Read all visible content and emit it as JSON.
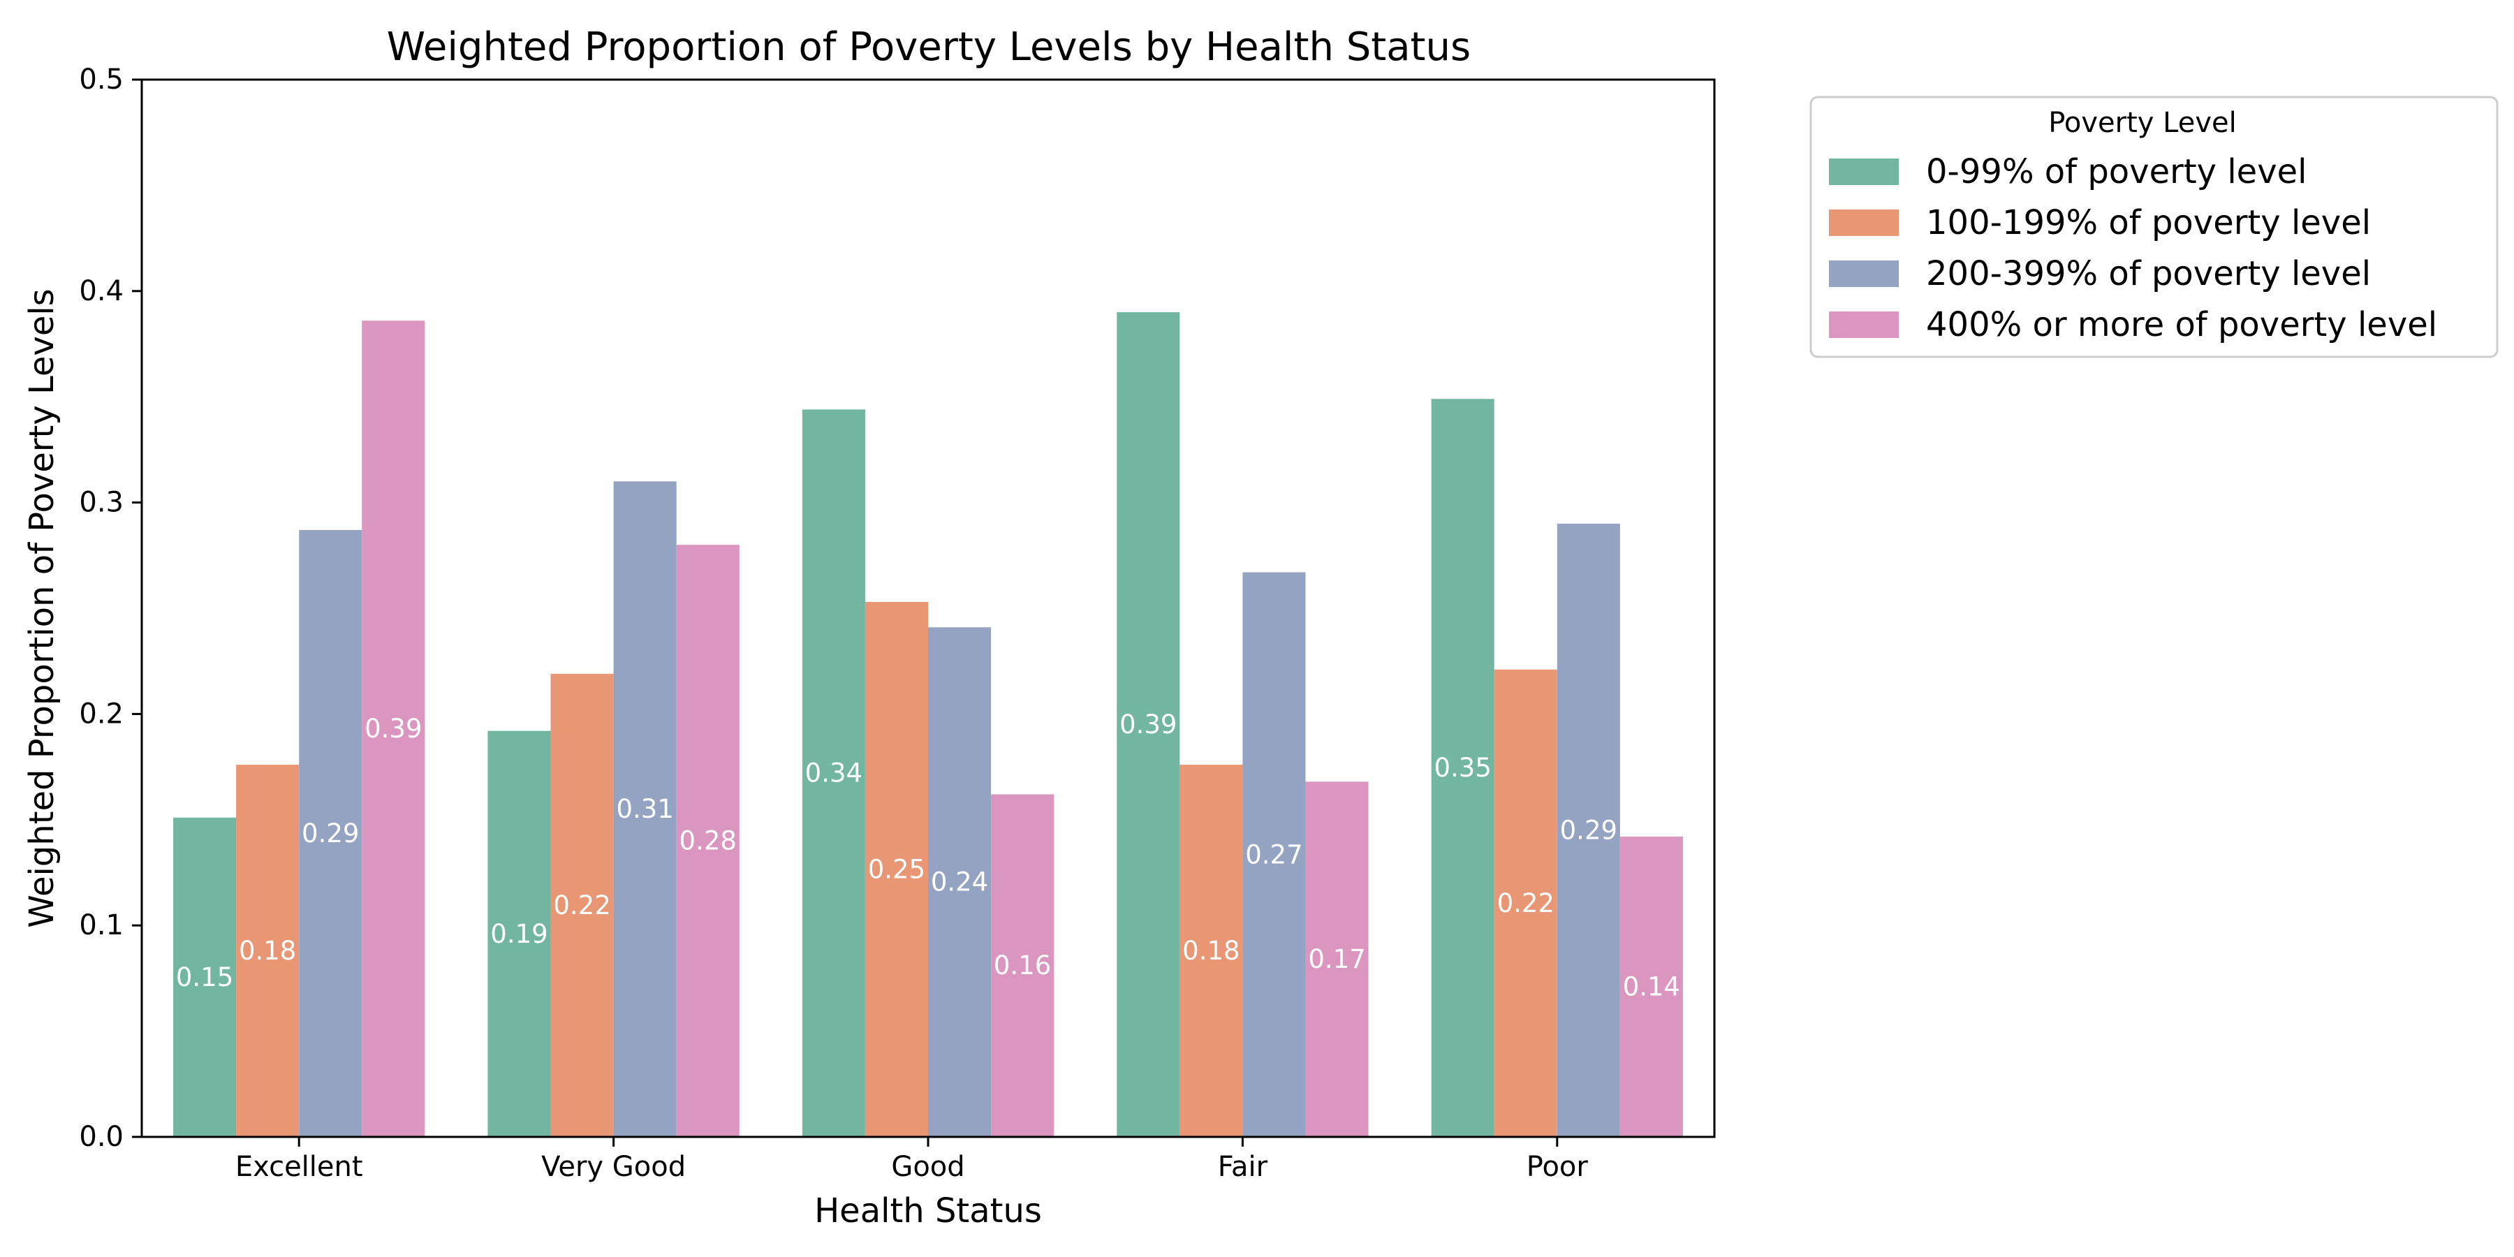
{
  "chart_data": {
    "type": "bar",
    "title": "Weighted Proportion of Poverty Levels by Health Status",
    "xlabel": "Health Status",
    "ylabel": "Weighted Proportion of Poverty Levels",
    "ylim": [
      0,
      0.5
    ],
    "yticks": [
      "0.0",
      "0.1",
      "0.2",
      "0.3",
      "0.4",
      "0.5"
    ],
    "categories": [
      "Excellent",
      "Very Good",
      "Good",
      "Fair",
      "Poor"
    ],
    "grid": false,
    "legend": {
      "title": "Poverty Level",
      "placement": "outside upper right"
    },
    "series": [
      {
        "name": "0-99% of poverty level",
        "color": "#72b6a1",
        "values": [
          0.151,
          0.192,
          0.344,
          0.39,
          0.349
        ],
        "labels": [
          "0.15",
          "0.19",
          "0.34",
          "0.39",
          "0.35"
        ]
      },
      {
        "name": "100-199% of poverty level",
        "color": "#e99675",
        "values": [
          0.176,
          0.219,
          0.253,
          0.176,
          0.221
        ],
        "labels": [
          "0.18",
          "0.22",
          "0.25",
          "0.18",
          "0.22"
        ]
      },
      {
        "name": "200-399% of poverty level",
        "color": "#95a3c3",
        "values": [
          0.287,
          0.31,
          0.241,
          0.267,
          0.29
        ],
        "labels": [
          "0.29",
          "0.31",
          "0.24",
          "0.27",
          "0.29"
        ]
      },
      {
        "name": "400% or more of poverty level",
        "color": "#db96c0",
        "values": [
          0.386,
          0.28,
          0.162,
          0.168,
          0.142
        ],
        "labels": [
          "0.39",
          "0.28",
          "0.16",
          "0.17",
          "0.14"
        ]
      }
    ]
  }
}
